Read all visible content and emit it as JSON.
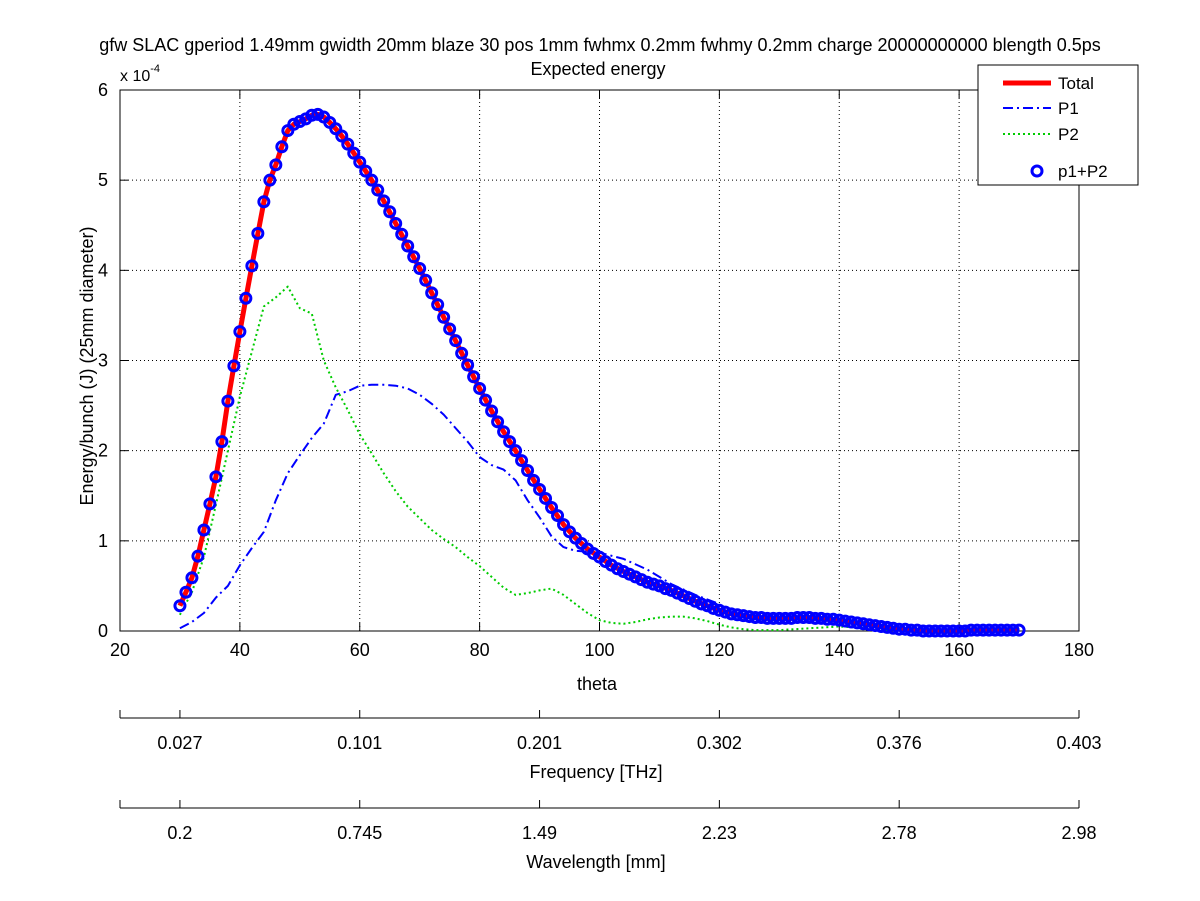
{
  "chart_data": {
    "type": "line",
    "title": "gfw SLAC gperiod 1.49mm gwidth 20mm blaze 30 pos 1mm fwhmx 0.2mm fwhmy 0.2mm charge 20000000000 blength 0.5ps",
    "subtitle": "Expected energy",
    "xlabel": "theta",
    "ylabel": "Energy/bunch (J) (25mm diameter)",
    "y_multiplier_label": "x 10",
    "y_multiplier_exponent": "-4",
    "xlim": [
      20,
      180
    ],
    "ylim": [
      0,
      6
    ],
    "x_ticks": [
      "20",
      "40",
      "60",
      "80",
      "100",
      "120",
      "140",
      "160",
      "180"
    ],
    "y_ticks": [
      "0",
      "1",
      "2",
      "3",
      "4",
      "5",
      "6"
    ],
    "grid": true,
    "legend_position": "top-right",
    "colors": {
      "total": "#ff0000",
      "p1": "#0000ff",
      "p2": "#00cc00",
      "p1p2": "#0000ff"
    },
    "series": [
      {
        "name": "Total",
        "style": "solid",
        "x": [
          30,
          31,
          32,
          33,
          34,
          35,
          36,
          37,
          38,
          39,
          40,
          41,
          42,
          43,
          44,
          45,
          46,
          47,
          48,
          49,
          50,
          51,
          52,
          53,
          54,
          55,
          56,
          57,
          58,
          59,
          60,
          62,
          64,
          66,
          68,
          70,
          72,
          74,
          76,
          78,
          80,
          82,
          84,
          86,
          88,
          90,
          92,
          94,
          96,
          98,
          100,
          102,
          104,
          106,
          108,
          110,
          112,
          114,
          116,
          118,
          120,
          122,
          124,
          126,
          128,
          130,
          132,
          134,
          136,
          138,
          140,
          142,
          144,
          146,
          148,
          150,
          152,
          154,
          156,
          158,
          160,
          162,
          164,
          166,
          168,
          170
        ],
        "values": [
          0.28,
          0.43,
          0.59,
          0.83,
          1.12,
          1.41,
          1.71,
          2.1,
          2.55,
          2.94,
          3.32,
          3.69,
          4.05,
          4.41,
          4.76,
          5.0,
          5.17,
          5.37,
          5.55,
          5.62,
          5.65,
          5.68,
          5.72,
          5.73,
          5.7,
          5.64,
          5.57,
          5.49,
          5.4,
          5.3,
          5.2,
          5.0,
          4.77,
          4.52,
          4.27,
          4.02,
          3.75,
          3.48,
          3.22,
          2.95,
          2.69,
          2.44,
          2.21,
          2.0,
          1.78,
          1.57,
          1.37,
          1.18,
          1.03,
          0.91,
          0.82,
          0.73,
          0.66,
          0.6,
          0.54,
          0.5,
          0.45,
          0.39,
          0.33,
          0.28,
          0.23,
          0.19,
          0.17,
          0.15,
          0.14,
          0.14,
          0.14,
          0.15,
          0.14,
          0.13,
          0.12,
          0.1,
          0.08,
          0.06,
          0.04,
          0.02,
          0.01,
          0.0,
          0.0,
          0.0,
          0.0,
          0.01,
          0.01,
          0.01,
          0.01,
          0.01
        ]
      },
      {
        "name": "P1",
        "style": "dashdot",
        "x": [
          30,
          32,
          34,
          36,
          38,
          40,
          42,
          44,
          46,
          48,
          50,
          52,
          54,
          56,
          58,
          60,
          62,
          64,
          66,
          68,
          70,
          72,
          74,
          76,
          78,
          80,
          82,
          84,
          86,
          88,
          90,
          92,
          94,
          96,
          98,
          100,
          104,
          108,
          112,
          116,
          120
        ],
        "values": [
          0.03,
          0.1,
          0.2,
          0.37,
          0.5,
          0.73,
          0.92,
          1.1,
          1.45,
          1.75,
          1.95,
          2.14,
          2.3,
          2.62,
          2.66,
          2.72,
          2.73,
          2.73,
          2.72,
          2.69,
          2.62,
          2.52,
          2.4,
          2.25,
          2.1,
          1.93,
          1.84,
          1.79,
          1.67,
          1.45,
          1.26,
          1.05,
          0.93,
          0.89,
          0.88,
          0.87,
          0.8,
          0.68,
          0.52,
          0.4,
          0.3
        ]
      },
      {
        "name": "P2",
        "style": "dotted",
        "x": [
          30,
          32,
          34,
          36,
          38,
          40,
          42,
          44,
          46,
          48,
          50,
          52,
          54,
          56,
          58,
          60,
          62,
          64,
          66,
          68,
          70,
          72,
          74,
          76,
          78,
          80,
          82,
          84,
          86,
          88,
          90,
          92,
          94,
          96,
          98,
          100,
          102,
          104,
          106,
          108,
          110,
          112,
          114,
          116,
          118,
          120,
          122,
          124,
          126,
          128,
          130,
          135,
          140,
          145,
          148
        ],
        "values": [
          0.18,
          0.43,
          0.82,
          1.4,
          2.0,
          2.6,
          3.1,
          3.6,
          3.7,
          3.82,
          3.58,
          3.52,
          3.0,
          2.7,
          2.45,
          2.18,
          1.97,
          1.75,
          1.55,
          1.38,
          1.25,
          1.12,
          1.02,
          0.93,
          0.82,
          0.72,
          0.6,
          0.48,
          0.4,
          0.42,
          0.45,
          0.47,
          0.4,
          0.3,
          0.2,
          0.12,
          0.09,
          0.08,
          0.1,
          0.13,
          0.15,
          0.16,
          0.16,
          0.14,
          0.11,
          0.07,
          0.04,
          0.02,
          0.01,
          0.01,
          0.01,
          0.03,
          0.05,
          0.03,
          0.01
        ]
      },
      {
        "name": "p1+P2",
        "style": "markers",
        "x": [
          30,
          31,
          32,
          33,
          34,
          35,
          36,
          37,
          38,
          39,
          40,
          41,
          42,
          43,
          44,
          45,
          46,
          47,
          48,
          49,
          50,
          51,
          52,
          53,
          54,
          55,
          56,
          57,
          58,
          59,
          60,
          61,
          62,
          63,
          64,
          65,
          66,
          67,
          68,
          69,
          70,
          71,
          72,
          73,
          74,
          75,
          76,
          77,
          78,
          79,
          80,
          81,
          82,
          83,
          84,
          85,
          86,
          87,
          88,
          89,
          90,
          91,
          92,
          93,
          94,
          95,
          96,
          97,
          98,
          99,
          100,
          101,
          102,
          103,
          104,
          105,
          106,
          107,
          108,
          109,
          110,
          111,
          112,
          113,
          114,
          115,
          116,
          117,
          118,
          119,
          120,
          121,
          122,
          123,
          124,
          125,
          126,
          127,
          128,
          129,
          130,
          131,
          132,
          133,
          134,
          135,
          136,
          137,
          138,
          139,
          140,
          141,
          142,
          143,
          144,
          145,
          146,
          147,
          148,
          149,
          150,
          151,
          152,
          153,
          154,
          155,
          156,
          157,
          158,
          159,
          160,
          161,
          162,
          163,
          164,
          165,
          166,
          167,
          168,
          169,
          170
        ],
        "values": [
          0.28,
          0.43,
          0.59,
          0.83,
          1.12,
          1.41,
          1.71,
          2.1,
          2.55,
          2.94,
          3.32,
          3.69,
          4.05,
          4.41,
          4.76,
          5.0,
          5.17,
          5.37,
          5.55,
          5.62,
          5.65,
          5.68,
          5.72,
          5.73,
          5.7,
          5.64,
          5.57,
          5.49,
          5.4,
          5.3,
          5.2,
          5.1,
          5.0,
          4.89,
          4.77,
          4.65,
          4.52,
          4.4,
          4.27,
          4.15,
          4.02,
          3.89,
          3.75,
          3.62,
          3.48,
          3.35,
          3.22,
          3.08,
          2.95,
          2.82,
          2.69,
          2.56,
          2.44,
          2.32,
          2.21,
          2.1,
          2.0,
          1.89,
          1.78,
          1.67,
          1.57,
          1.47,
          1.37,
          1.28,
          1.18,
          1.1,
          1.03,
          0.97,
          0.91,
          0.86,
          0.82,
          0.77,
          0.73,
          0.69,
          0.66,
          0.63,
          0.6,
          0.57,
          0.54,
          0.52,
          0.5,
          0.47,
          0.45,
          0.42,
          0.39,
          0.36,
          0.33,
          0.3,
          0.28,
          0.25,
          0.23,
          0.21,
          0.19,
          0.18,
          0.17,
          0.16,
          0.15,
          0.15,
          0.14,
          0.14,
          0.14,
          0.14,
          0.14,
          0.15,
          0.15,
          0.15,
          0.14,
          0.14,
          0.13,
          0.13,
          0.12,
          0.11,
          0.1,
          0.09,
          0.08,
          0.07,
          0.06,
          0.05,
          0.04,
          0.03,
          0.02,
          0.02,
          0.01,
          0.01,
          0.0,
          0.0,
          0.0,
          0.0,
          0.0,
          0.0,
          0.0,
          0.0,
          0.01,
          0.01,
          0.01,
          0.01,
          0.01,
          0.01,
          0.01,
          0.01,
          0.01
        ]
      }
    ],
    "secondary_axes": [
      {
        "label": "Frequency [THz]",
        "ticks": [
          "0.027",
          "0.101",
          "0.201",
          "0.302",
          "0.376",
          "0.403"
        ],
        "tick_theta": [
          30,
          60,
          90,
          120,
          150,
          180
        ]
      },
      {
        "label": "Wavelength [mm]",
        "ticks": [
          "0.2",
          "0.745",
          "1.49",
          "2.23",
          "2.78",
          "2.98"
        ],
        "tick_theta": [
          30,
          60,
          90,
          120,
          150,
          180
        ]
      }
    ]
  }
}
